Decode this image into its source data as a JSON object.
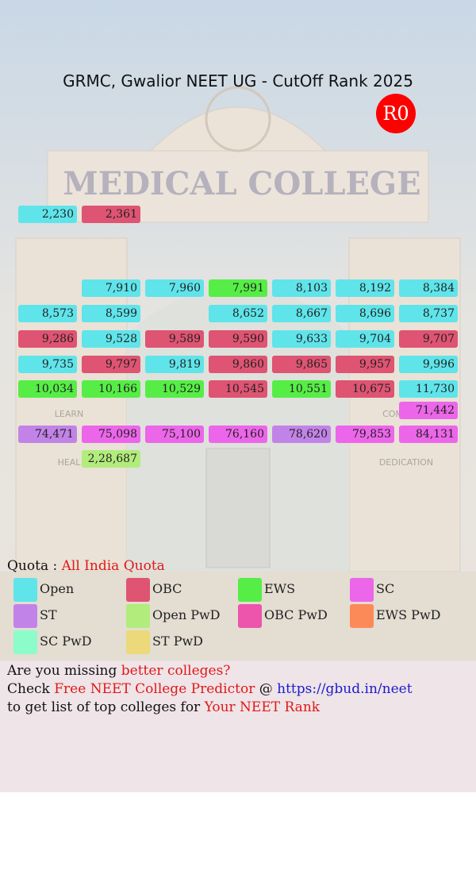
{
  "header": {
    "title": "GRMC, Gwalior NEET UG - CutOff Rank 2025",
    "round": "R0"
  },
  "background": {
    "sign": "MEDICAL COLLEGE",
    "left_top": "LEARN",
    "left_bottom": "HEAL",
    "right_top": "COM",
    "right_bottom": "DEDICATION"
  },
  "rows": [
    [
      {
        "rank": "2,230",
        "quota": "Open"
      },
      {
        "rank": "2,361",
        "quota": "OBC"
      },
      null,
      null,
      null,
      null,
      null
    ],
    [
      null,
      null,
      null,
      null,
      null,
      null,
      null
    ],
    [
      null,
      {
        "rank": "7,910",
        "quota": "Open"
      },
      {
        "rank": "7,960",
        "quota": "Open"
      },
      {
        "rank": "7,991",
        "quota": "EWS"
      },
      {
        "rank": "8,103",
        "quota": "Open"
      },
      {
        "rank": "8,192",
        "quota": "Open"
      },
      {
        "rank": "8,384",
        "quota": "Open"
      }
    ],
    [
      {
        "rank": "8,573",
        "quota": "Open"
      },
      {
        "rank": "8,599",
        "quota": "Open"
      },
      null,
      {
        "rank": "8,652",
        "quota": "Open"
      },
      {
        "rank": "8,667",
        "quota": "Open"
      },
      {
        "rank": "8,696",
        "quota": "Open"
      },
      {
        "rank": "8,737",
        "quota": "Open"
      }
    ],
    [
      {
        "rank": "9,286",
        "quota": "OBC"
      },
      {
        "rank": "9,528",
        "quota": "Open"
      },
      {
        "rank": "9,589",
        "quota": "OBC"
      },
      {
        "rank": "9,590",
        "quota": "OBC"
      },
      {
        "rank": "9,633",
        "quota": "Open"
      },
      {
        "rank": "9,704",
        "quota": "Open"
      },
      {
        "rank": "9,707",
        "quota": "OBC"
      }
    ],
    [
      {
        "rank": "9,735",
        "quota": "Open"
      },
      {
        "rank": "9,797",
        "quota": "OBC"
      },
      {
        "rank": "9,819",
        "quota": "Open"
      },
      {
        "rank": "9,860",
        "quota": "OBC"
      },
      {
        "rank": "9,865",
        "quota": "OBC"
      },
      {
        "rank": "9,957",
        "quota": "OBC"
      },
      {
        "rank": "9,996",
        "quota": "Open"
      }
    ],
    [
      {
        "rank": "10,034",
        "quota": "EWS"
      },
      {
        "rank": "10,166",
        "quota": "EWS"
      },
      {
        "rank": "10,529",
        "quota": "EWS"
      },
      {
        "rank": "10,545",
        "quota": "OBC"
      },
      {
        "rank": "10,551",
        "quota": "EWS"
      },
      {
        "rank": "10,675",
        "quota": "OBC"
      },
      {
        "rank": "11,730",
        "quota": "Open"
      }
    ],
    [
      null,
      null,
      null,
      null,
      null,
      null,
      {
        "rank": "71,442",
        "quota": "SC"
      }
    ],
    [
      {
        "rank": "74,471",
        "quota": "ST"
      },
      {
        "rank": "75,098",
        "quota": "SC"
      },
      {
        "rank": "75,100",
        "quota": "SC"
      },
      {
        "rank": "76,160",
        "quota": "SC"
      },
      {
        "rank": "78,620",
        "quota": "ST"
      },
      {
        "rank": "79,853",
        "quota": "SC"
      },
      {
        "rank": "84,131",
        "quota": "SC"
      }
    ],
    [
      null,
      {
        "rank": "2,28,687",
        "quota": "Open PwD"
      },
      null,
      null,
      null,
      null,
      null
    ]
  ],
  "legend": {
    "label": "Quota :",
    "quota": "All India Quota",
    "items": [
      {
        "name": "Open",
        "color": "#5fe4ea"
      },
      {
        "name": "OBC",
        "color": "#de5472"
      },
      {
        "name": "EWS",
        "color": "#56ee46"
      },
      {
        "name": "SC",
        "color": "#ec66ea"
      },
      {
        "name": "ST",
        "color": "#c283e8"
      },
      {
        "name": "Open PwD",
        "color": "#b2ec7c"
      },
      {
        "name": "OBC PwD",
        "color": "#ec55ab"
      },
      {
        "name": "EWS PwD",
        "color": "#fc8a58"
      },
      {
        "name": "SC PwD",
        "color": "#8cfcca"
      },
      {
        "name": "ST PwD",
        "color": "#ecd97a"
      }
    ]
  },
  "footer": {
    "lines": [
      [
        {
          "text": "Are you missing ",
          "color": "#111111"
        },
        {
          "text": "better colleges?",
          "color": "#e01818"
        }
      ],
      [
        {
          "text": "Check ",
          "color": "#111111"
        },
        {
          "text": "Free NEET College Predictor",
          "color": "#e01818"
        },
        {
          "text": " @ ",
          "color": "#111111"
        },
        {
          "text": "https://gbud.in/neet",
          "color": "#1a1acc"
        }
      ],
      [
        {
          "text": "to get list of top colleges for ",
          "color": "#111111"
        },
        {
          "text": "Your NEET Rank",
          "color": "#e01818"
        }
      ]
    ]
  }
}
